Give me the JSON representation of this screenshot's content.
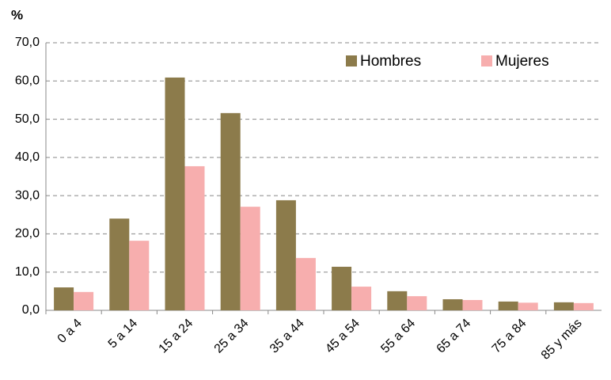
{
  "chart_data": {
    "type": "bar",
    "y_label": "%",
    "categories": [
      "0 a 4",
      "5 a 14",
      "15 a 24",
      "25 a 34",
      "35 a 44",
      "45 a 54",
      "55 a 64",
      "65 a 74",
      "75 a 84",
      "85 y más"
    ],
    "series": [
      {
        "name": "Hombres",
        "color": "#8c7b4b",
        "values": [
          6.0,
          24.0,
          60.9,
          51.6,
          28.8,
          11.4,
          5.0,
          2.9,
          2.3,
          2.1
        ]
      },
      {
        "name": "Mujeres",
        "color": "#f7aeae",
        "values": [
          4.8,
          18.2,
          37.7,
          27.1,
          13.7,
          6.2,
          3.7,
          2.7,
          2.0,
          1.9
        ]
      }
    ],
    "ylim": [
      0,
      70
    ],
    "yticks": [
      {
        "value": 0,
        "label": "0,0"
      },
      {
        "value": 10,
        "label": "10,0"
      },
      {
        "value": 20,
        "label": "20,0"
      },
      {
        "value": 30,
        "label": "30,0"
      },
      {
        "value": 40,
        "label": "40,0"
      },
      {
        "value": 50,
        "label": "50,0"
      },
      {
        "value": 60,
        "label": "60,0"
      },
      {
        "value": 70,
        "label": "70,0"
      }
    ],
    "grid": true,
    "legend": "top-right"
  }
}
